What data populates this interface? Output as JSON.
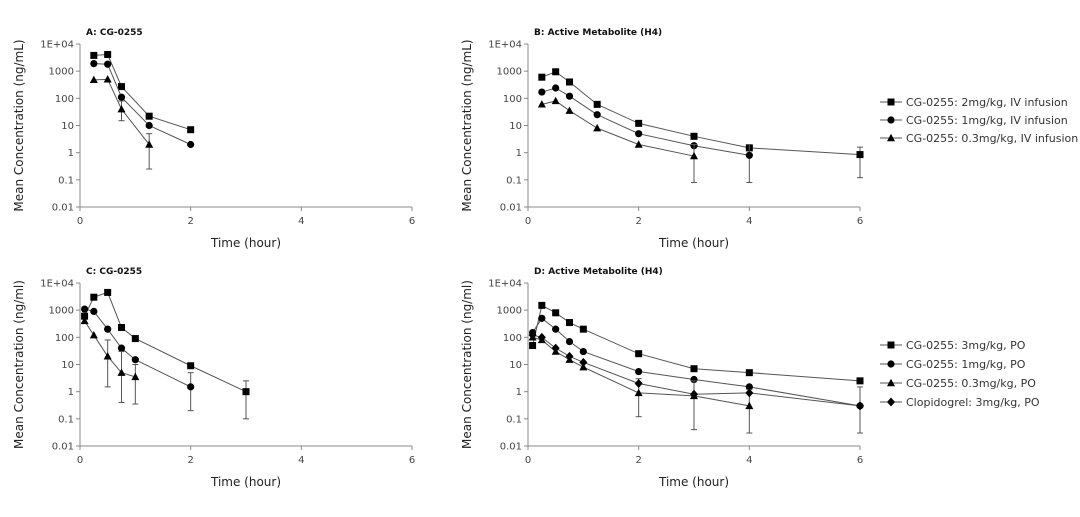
{
  "chart_data": [
    {
      "type": "line",
      "title": "A: CG-0255",
      "xlabel": "Time (hour)",
      "ylabel": "Mean Concentration (ng/mL)",
      "xlim": [
        0,
        6
      ],
      "xticks": [
        0,
        2,
        4,
        6
      ],
      "yscale": "log",
      "ylim": [
        0.01,
        10000
      ],
      "yticks": [
        0.01,
        0.1,
        1,
        10,
        100,
        1000,
        10000
      ],
      "ytick_labels": [
        "0.01",
        "0.1",
        "1",
        "10",
        "100",
        "1000",
        "1E+04"
      ],
      "grid": false,
      "series": [
        {
          "marker": "square",
          "x": [
            0.25,
            0.5,
            0.75,
            1.25,
            2
          ],
          "y": [
            3800,
            4100,
            270,
            22,
            7
          ]
        },
        {
          "marker": "circle",
          "x": [
            0.25,
            0.5,
            0.75,
            1.25,
            2
          ],
          "y": [
            1900,
            1800,
            110,
            10,
            2
          ]
        },
        {
          "marker": "triangle",
          "x": [
            0.25,
            0.5,
            0.75,
            1.25
          ],
          "y": [
            480,
            500,
            40,
            2
          ],
          "err_low": [
            null,
            null,
            15,
            0.25
          ],
          "err_high": [
            null,
            null,
            80,
            5
          ]
        }
      ]
    },
    {
      "type": "line",
      "title": "B: Active Metabolite (H4)",
      "xlabel": "Time (hour)",
      "ylabel": "Mean Concentration (ng/mL)",
      "xlim": [
        0,
        6
      ],
      "xticks": [
        0,
        2,
        4,
        6
      ],
      "yscale": "log",
      "ylim": [
        0.01,
        10000
      ],
      "yticks": [
        0.01,
        0.1,
        1,
        10,
        100,
        1000,
        10000
      ],
      "ytick_labels": [
        "0.01",
        "0.1",
        "1",
        "10",
        "100",
        "1000",
        "1E+04"
      ],
      "grid": false,
      "legend_position": "right",
      "series": [
        {
          "name": "CG-0255: 2mg/kg, IV infusion",
          "marker": "square",
          "x": [
            0.25,
            0.5,
            0.75,
            1.25,
            2,
            3,
            4,
            6
          ],
          "y": [
            600,
            950,
            400,
            60,
            12,
            4,
            1.5,
            0.85
          ],
          "err_low": [
            null,
            null,
            null,
            null,
            null,
            null,
            null,
            0.12
          ],
          "err_high": [
            null,
            null,
            null,
            null,
            null,
            null,
            null,
            1.6
          ]
        },
        {
          "name": "CG-0255: 1mg/kg, IV infusion",
          "marker": "circle",
          "x": [
            0.25,
            0.5,
            0.75,
            1.25,
            2,
            3,
            4
          ],
          "y": [
            170,
            240,
            120,
            25,
            5,
            1.8,
            0.8
          ],
          "err_low": [
            null,
            null,
            null,
            null,
            null,
            null,
            0.08
          ],
          "err_high": [
            null,
            null,
            null,
            null,
            null,
            null,
            2
          ]
        },
        {
          "name": "CG-0255: 0.3mg/kg, IV infusion",
          "marker": "triangle",
          "x": [
            0.25,
            0.5,
            0.75,
            1.25,
            2,
            3
          ],
          "y": [
            60,
            80,
            35,
            8,
            2,
            0.75
          ],
          "err_low": [
            null,
            null,
            null,
            null,
            null,
            0.08
          ],
          "err_high": [
            null,
            null,
            null,
            null,
            null,
            2
          ]
        }
      ]
    },
    {
      "type": "line",
      "title": "C: CG-0255",
      "xlabel": "Time (hour)",
      "ylabel": "Mean Concentration (ng/ml)",
      "xlim": [
        0,
        6
      ],
      "xticks": [
        0,
        2,
        4,
        6
      ],
      "yscale": "log",
      "ylim": [
        0.01,
        10000
      ],
      "yticks": [
        0.01,
        0.1,
        1,
        10,
        100,
        1000,
        10000
      ],
      "ytick_labels": [
        "0.01",
        "0.1",
        "1",
        "10",
        "100",
        "1000",
        "1E+04"
      ],
      "grid": false,
      "series": [
        {
          "marker": "square",
          "x": [
            0.083,
            0.25,
            0.5,
            0.75,
            1,
            2,
            3
          ],
          "y": [
            600,
            3000,
            4500,
            230,
            90,
            9,
            1
          ],
          "err_low": [
            null,
            null,
            null,
            null,
            null,
            null,
            0.1
          ],
          "err_high": [
            null,
            null,
            null,
            null,
            null,
            null,
            2.5
          ]
        },
        {
          "marker": "circle",
          "x": [
            0.083,
            0.25,
            0.5,
            0.75,
            1,
            2
          ],
          "y": [
            1100,
            900,
            200,
            40,
            15,
            1.5
          ],
          "err_low": [
            null,
            null,
            null,
            null,
            null,
            0.2
          ],
          "err_high": [
            null,
            null,
            null,
            null,
            null,
            5
          ]
        },
        {
          "marker": "triangle",
          "x": [
            0.083,
            0.25,
            0.5,
            0.75,
            1
          ],
          "y": [
            400,
            120,
            20,
            5,
            3.5
          ],
          "err_low": [
            null,
            null,
            1.5,
            0.4,
            0.35
          ],
          "err_high": [
            null,
            null,
            80,
            30,
            10
          ]
        }
      ]
    },
    {
      "type": "line",
      "title": "D: Active Metabolite (H4)",
      "xlabel": "Time (hour)",
      "ylabel": "Mean Concentration (ng/ml)",
      "xlim": [
        0,
        6
      ],
      "xticks": [
        0,
        2,
        4,
        6
      ],
      "yscale": "log",
      "ylim": [
        0.01,
        10000
      ],
      "yticks": [
        0.01,
        0.1,
        1,
        10,
        100,
        1000,
        10000
      ],
      "ytick_labels": [
        "0.01",
        "0.1",
        "1",
        "10",
        "100",
        "1000",
        "1E+04"
      ],
      "grid": false,
      "legend_position": "right",
      "series": [
        {
          "name": "CG-0255: 3mg/kg, PO",
          "marker": "square",
          "x": [
            0.083,
            0.25,
            0.5,
            0.75,
            1,
            2,
            3,
            4,
            6
          ],
          "y": [
            50,
            1500,
            800,
            350,
            200,
            25,
            7,
            5,
            2.5
          ]
        },
        {
          "name": "CG-0255: 1mg/kg, PO",
          "marker": "circle",
          "x": [
            0.083,
            0.25,
            0.5,
            0.75,
            1,
            2,
            3,
            4,
            6
          ],
          "y": [
            150,
            500,
            200,
            70,
            30,
            5.5,
            2.8,
            1.5,
            0.3
          ],
          "err_low": [
            null,
            null,
            null,
            null,
            null,
            null,
            null,
            null,
            0.03
          ],
          "err_high": [
            null,
            null,
            null,
            null,
            null,
            null,
            null,
            null,
            1.5
          ]
        },
        {
          "name": "CG-0255: 0.3mg/kg, PO",
          "marker": "triangle",
          "x": [
            0.083,
            0.25,
            0.5,
            0.75,
            1,
            2,
            3,
            4
          ],
          "y": [
            100,
            80,
            30,
            15,
            8,
            0.9,
            0.7,
            0.3
          ],
          "err_low": [
            null,
            null,
            null,
            null,
            null,
            0.12,
            0.04,
            0.03
          ],
          "err_high": [
            null,
            null,
            null,
            null,
            null,
            3,
            2.5,
            1.2
          ]
        },
        {
          "name": "Clopidogrel: 3mg/kg, PO",
          "marker": "diamond",
          "x": [
            0.083,
            0.25,
            0.5,
            0.75,
            1,
            2,
            3,
            4,
            6
          ],
          "y": [
            120,
            100,
            40,
            20,
            12,
            2,
            0.8,
            0.9,
            0.3
          ]
        }
      ]
    }
  ]
}
